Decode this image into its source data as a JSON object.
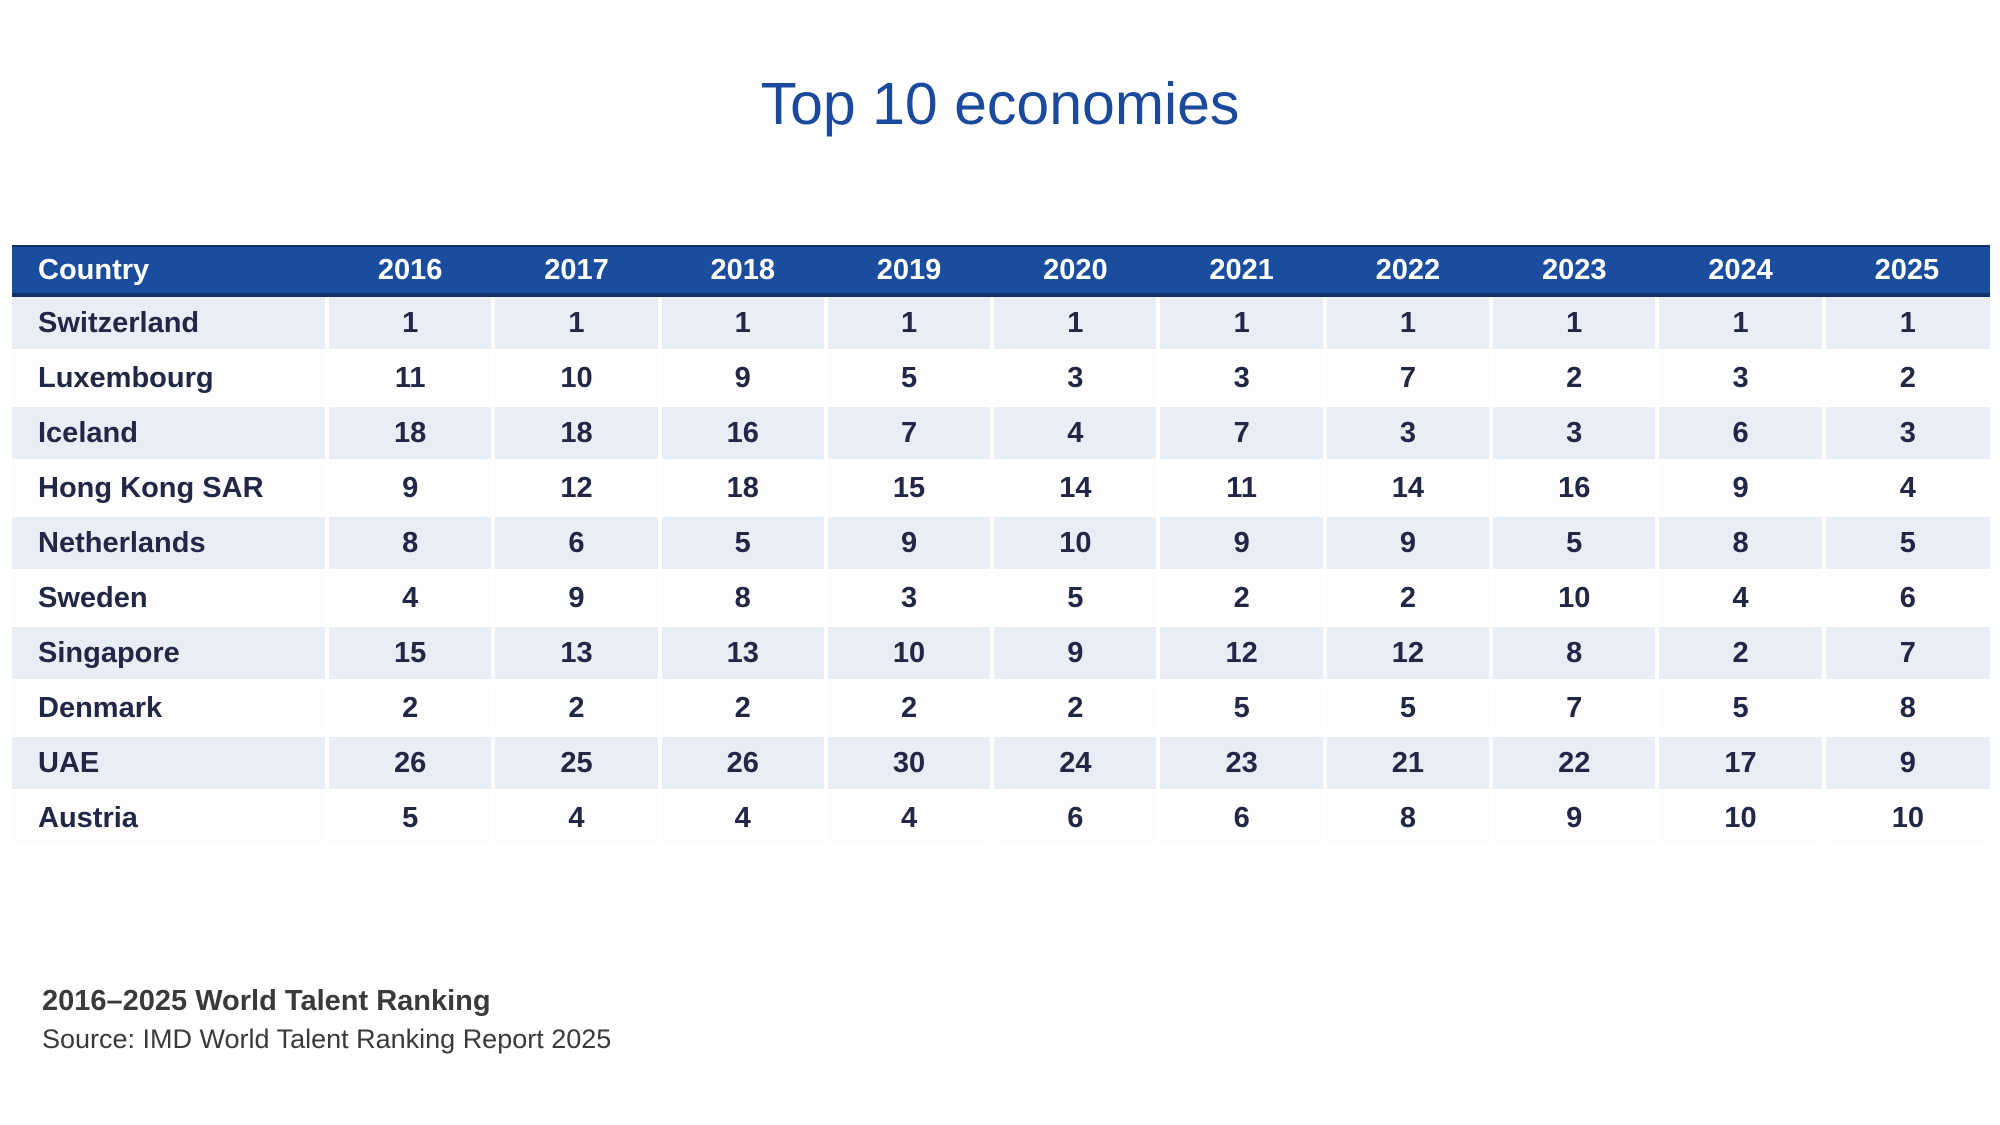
{
  "title": "Top 10 economies",
  "chart_data": {
    "type": "table",
    "title": "Top 10 economies",
    "columns": [
      "Country",
      "2016",
      "2017",
      "2018",
      "2019",
      "2020",
      "2021",
      "2022",
      "2023",
      "2024",
      "2025"
    ],
    "rows": [
      {
        "country": "Switzerland",
        "values": [
          1,
          1,
          1,
          1,
          1,
          1,
          1,
          1,
          1,
          1
        ]
      },
      {
        "country": "Luxembourg",
        "values": [
          11,
          10,
          9,
          5,
          3,
          3,
          7,
          2,
          3,
          2
        ]
      },
      {
        "country": "Iceland",
        "values": [
          18,
          18,
          16,
          7,
          4,
          7,
          3,
          3,
          6,
          3
        ]
      },
      {
        "country": "Hong Kong SAR",
        "values": [
          9,
          12,
          18,
          15,
          14,
          11,
          14,
          16,
          9,
          4
        ]
      },
      {
        "country": "Netherlands",
        "values": [
          8,
          6,
          5,
          9,
          10,
          9,
          9,
          5,
          8,
          5
        ]
      },
      {
        "country": "Sweden",
        "values": [
          4,
          9,
          8,
          3,
          5,
          2,
          2,
          10,
          4,
          6
        ]
      },
      {
        "country": "Singapore",
        "values": [
          15,
          13,
          13,
          10,
          9,
          12,
          12,
          8,
          2,
          7
        ]
      },
      {
        "country": "Denmark",
        "values": [
          2,
          2,
          2,
          2,
          2,
          5,
          5,
          7,
          5,
          8
        ]
      },
      {
        "country": "UAE",
        "values": [
          26,
          25,
          26,
          30,
          24,
          23,
          21,
          22,
          17,
          9
        ]
      },
      {
        "country": "Austria",
        "values": [
          5,
          4,
          4,
          4,
          6,
          6,
          8,
          9,
          10,
          10
        ]
      }
    ]
  },
  "footer": {
    "heading": "2016–2025 World Talent Ranking",
    "source": "Source: IMD World Talent Ranking Report 2025"
  },
  "colors": {
    "title": "#1b4a9c",
    "header_bg": "#1a4d9d",
    "header_edge": "#10306a",
    "stripe": "#e9edf6",
    "cell_text": "#212744",
    "footer_text": "#3a3a3a"
  }
}
